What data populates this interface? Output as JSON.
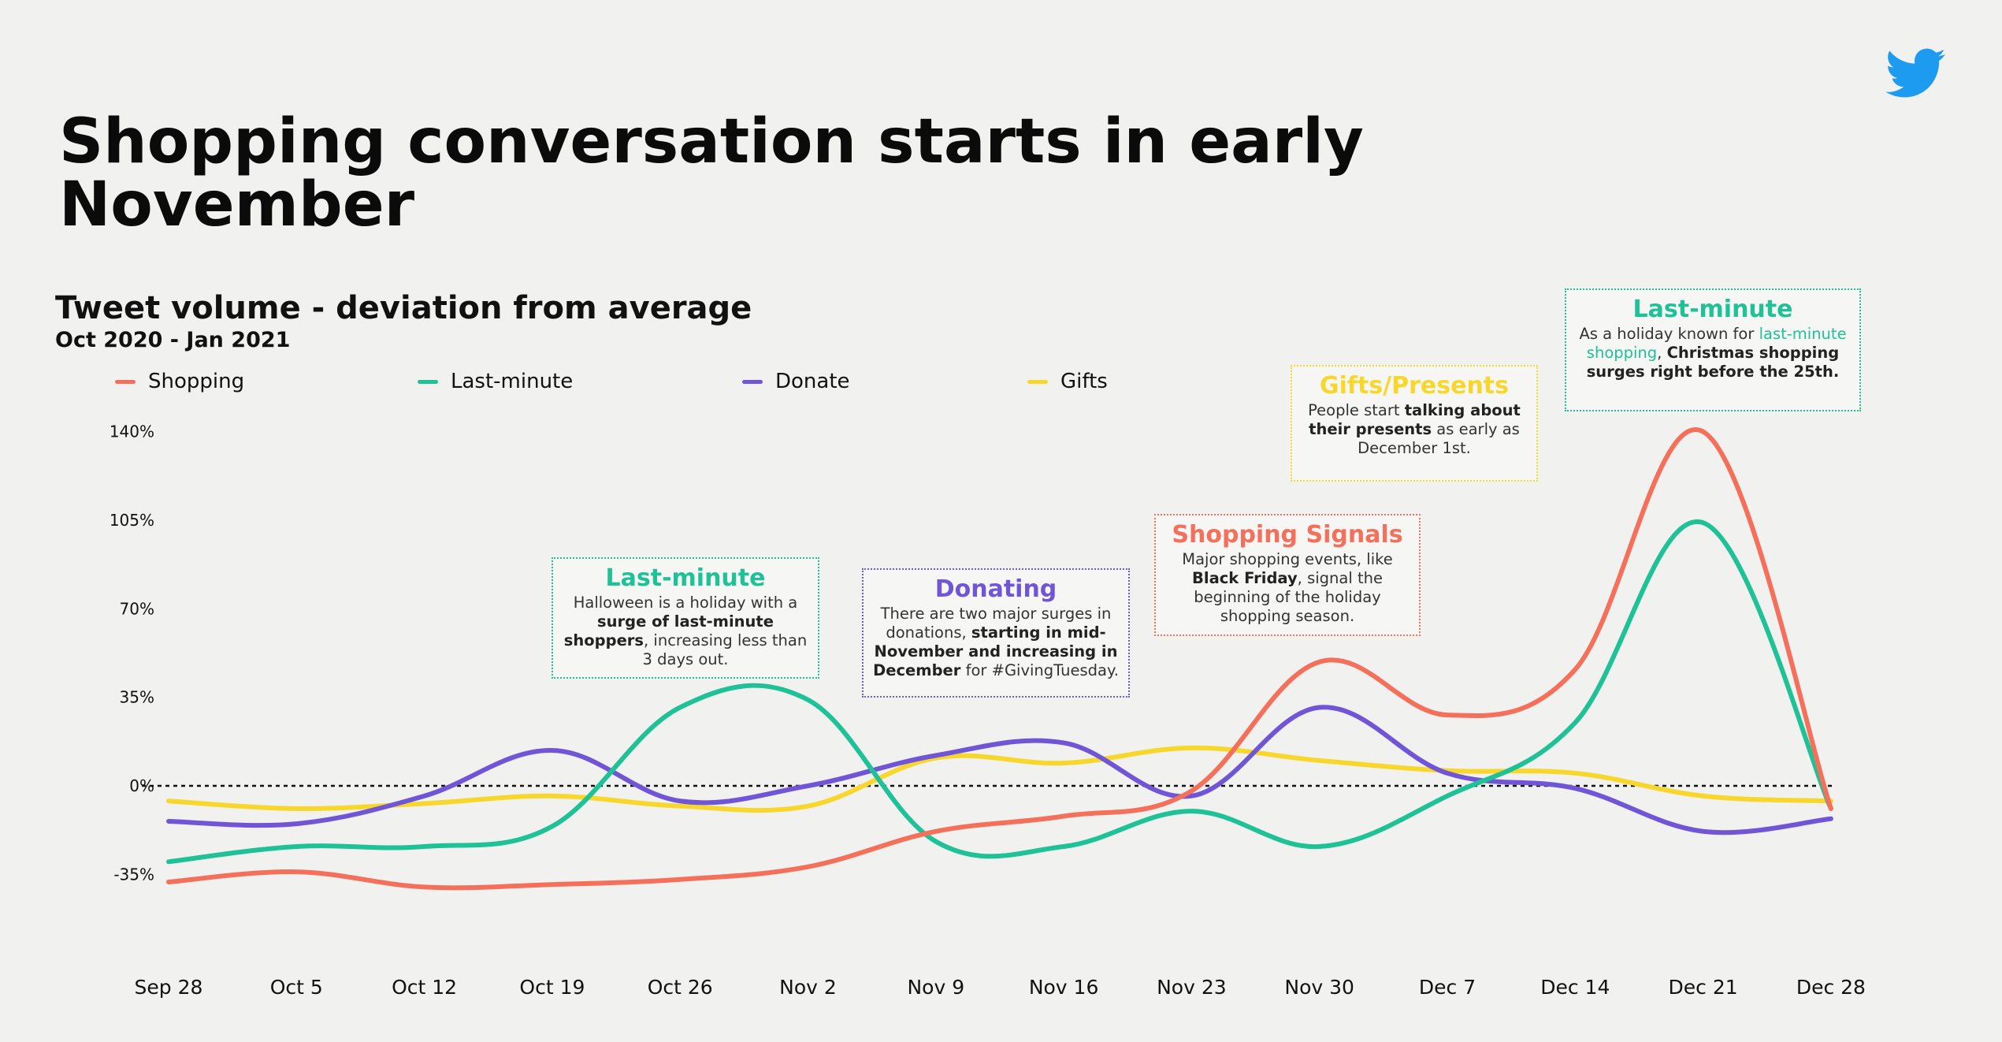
{
  "header": {
    "title": "Shopping conversation starts in early November"
  },
  "chart_header": {
    "subtitle": "Tweet volume - deviation from average",
    "date_range": "Oct 2020 - Jan 2021"
  },
  "legend": [
    {
      "label": "Shopping",
      "color": "#f5705a"
    },
    {
      "label": "Last-minute",
      "color": "#1fc196"
    },
    {
      "label": "Donate",
      "color": "#7056d6"
    },
    {
      "label": "Gifts",
      "color": "#f8d72c"
    }
  ],
  "annotations": [
    {
      "title": "Last-minute",
      "color": "#1fc196",
      "parts": [
        {
          "t": "Halloween is a holiday with a "
        },
        {
          "t": "surge of last-minute shoppers",
          "b": true
        },
        {
          "t": ", increasing less than 3 days out."
        }
      ]
    },
    {
      "title": "Donating",
      "color": "#7056d6",
      "parts": [
        {
          "t": "There are two major surges in donations, "
        },
        {
          "t": "starting in mid-November and increasing in December",
          "b": true
        },
        {
          "t": " for #GivingTuesday."
        }
      ]
    },
    {
      "title": "Shopping Signals",
      "color": "#f5705a",
      "parts": [
        {
          "t": "Major shopping events, like "
        },
        {
          "t": "Black Friday",
          "b": true
        },
        {
          "t": ", signal the beginning of the holiday shopping season."
        }
      ]
    },
    {
      "title": "Gifts/Presents",
      "color": "#f8d72c",
      "parts": [
        {
          "t": "People start "
        },
        {
          "t": "talking about their presents",
          "b": true
        },
        {
          "t": " as early as December 1st."
        }
      ]
    },
    {
      "title": "Last-minute",
      "color": "#1fc196",
      "parts": [
        {
          "t": "As a holiday known for "
        },
        {
          "t": "last-minute shopping",
          "c": "#1fc196"
        },
        {
          "t": ", "
        },
        {
          "t": "Christmas shopping surges right before the 25th.",
          "b": true
        }
      ]
    }
  ],
  "chart_data": {
    "type": "line",
    "title": "Tweet volume - deviation from average",
    "categories": [
      "Sep 28",
      "Oct 5",
      "Oct 12",
      "Oct 19",
      "Oct 26",
      "Nov 2",
      "Nov 9",
      "Nov 16",
      "Nov 23",
      "Nov 30",
      "Dec 7",
      "Dec 14",
      "Dec 21",
      "Dec 28"
    ],
    "yticks": [
      140,
      105,
      70,
      35,
      0,
      -35
    ],
    "ytick_labels": [
      "140%",
      "105%",
      "70%",
      "35%",
      "0%",
      "-35%"
    ],
    "ylim": [
      -35,
      140
    ],
    "zero_line": "dotted",
    "series": [
      {
        "name": "Shopping",
        "color": "#f5705a",
        "values": [
          -38,
          -34,
          -40,
          -39,
          -37,
          -32,
          -18,
          -12,
          -2,
          49,
          28,
          46,
          140,
          -9
        ]
      },
      {
        "name": "Last-minute",
        "color": "#1fc196",
        "values": [
          -30,
          -24,
          -24,
          -16,
          31,
          34,
          -22,
          -24,
          -10,
          -24,
          -4,
          25,
          104,
          -9
        ]
      },
      {
        "name": "Donate",
        "color": "#7056d6",
        "values": [
          -14,
          -15,
          -4,
          14,
          -6,
          0,
          12,
          17,
          -4,
          31,
          5,
          -1,
          -18,
          -13
        ]
      },
      {
        "name": "Gifts",
        "color": "#f8d72c",
        "values": [
          -6,
          -9,
          -7,
          -4,
          -8,
          -8,
          11,
          9,
          15,
          10,
          6,
          5,
          -4,
          -6
        ]
      }
    ]
  }
}
